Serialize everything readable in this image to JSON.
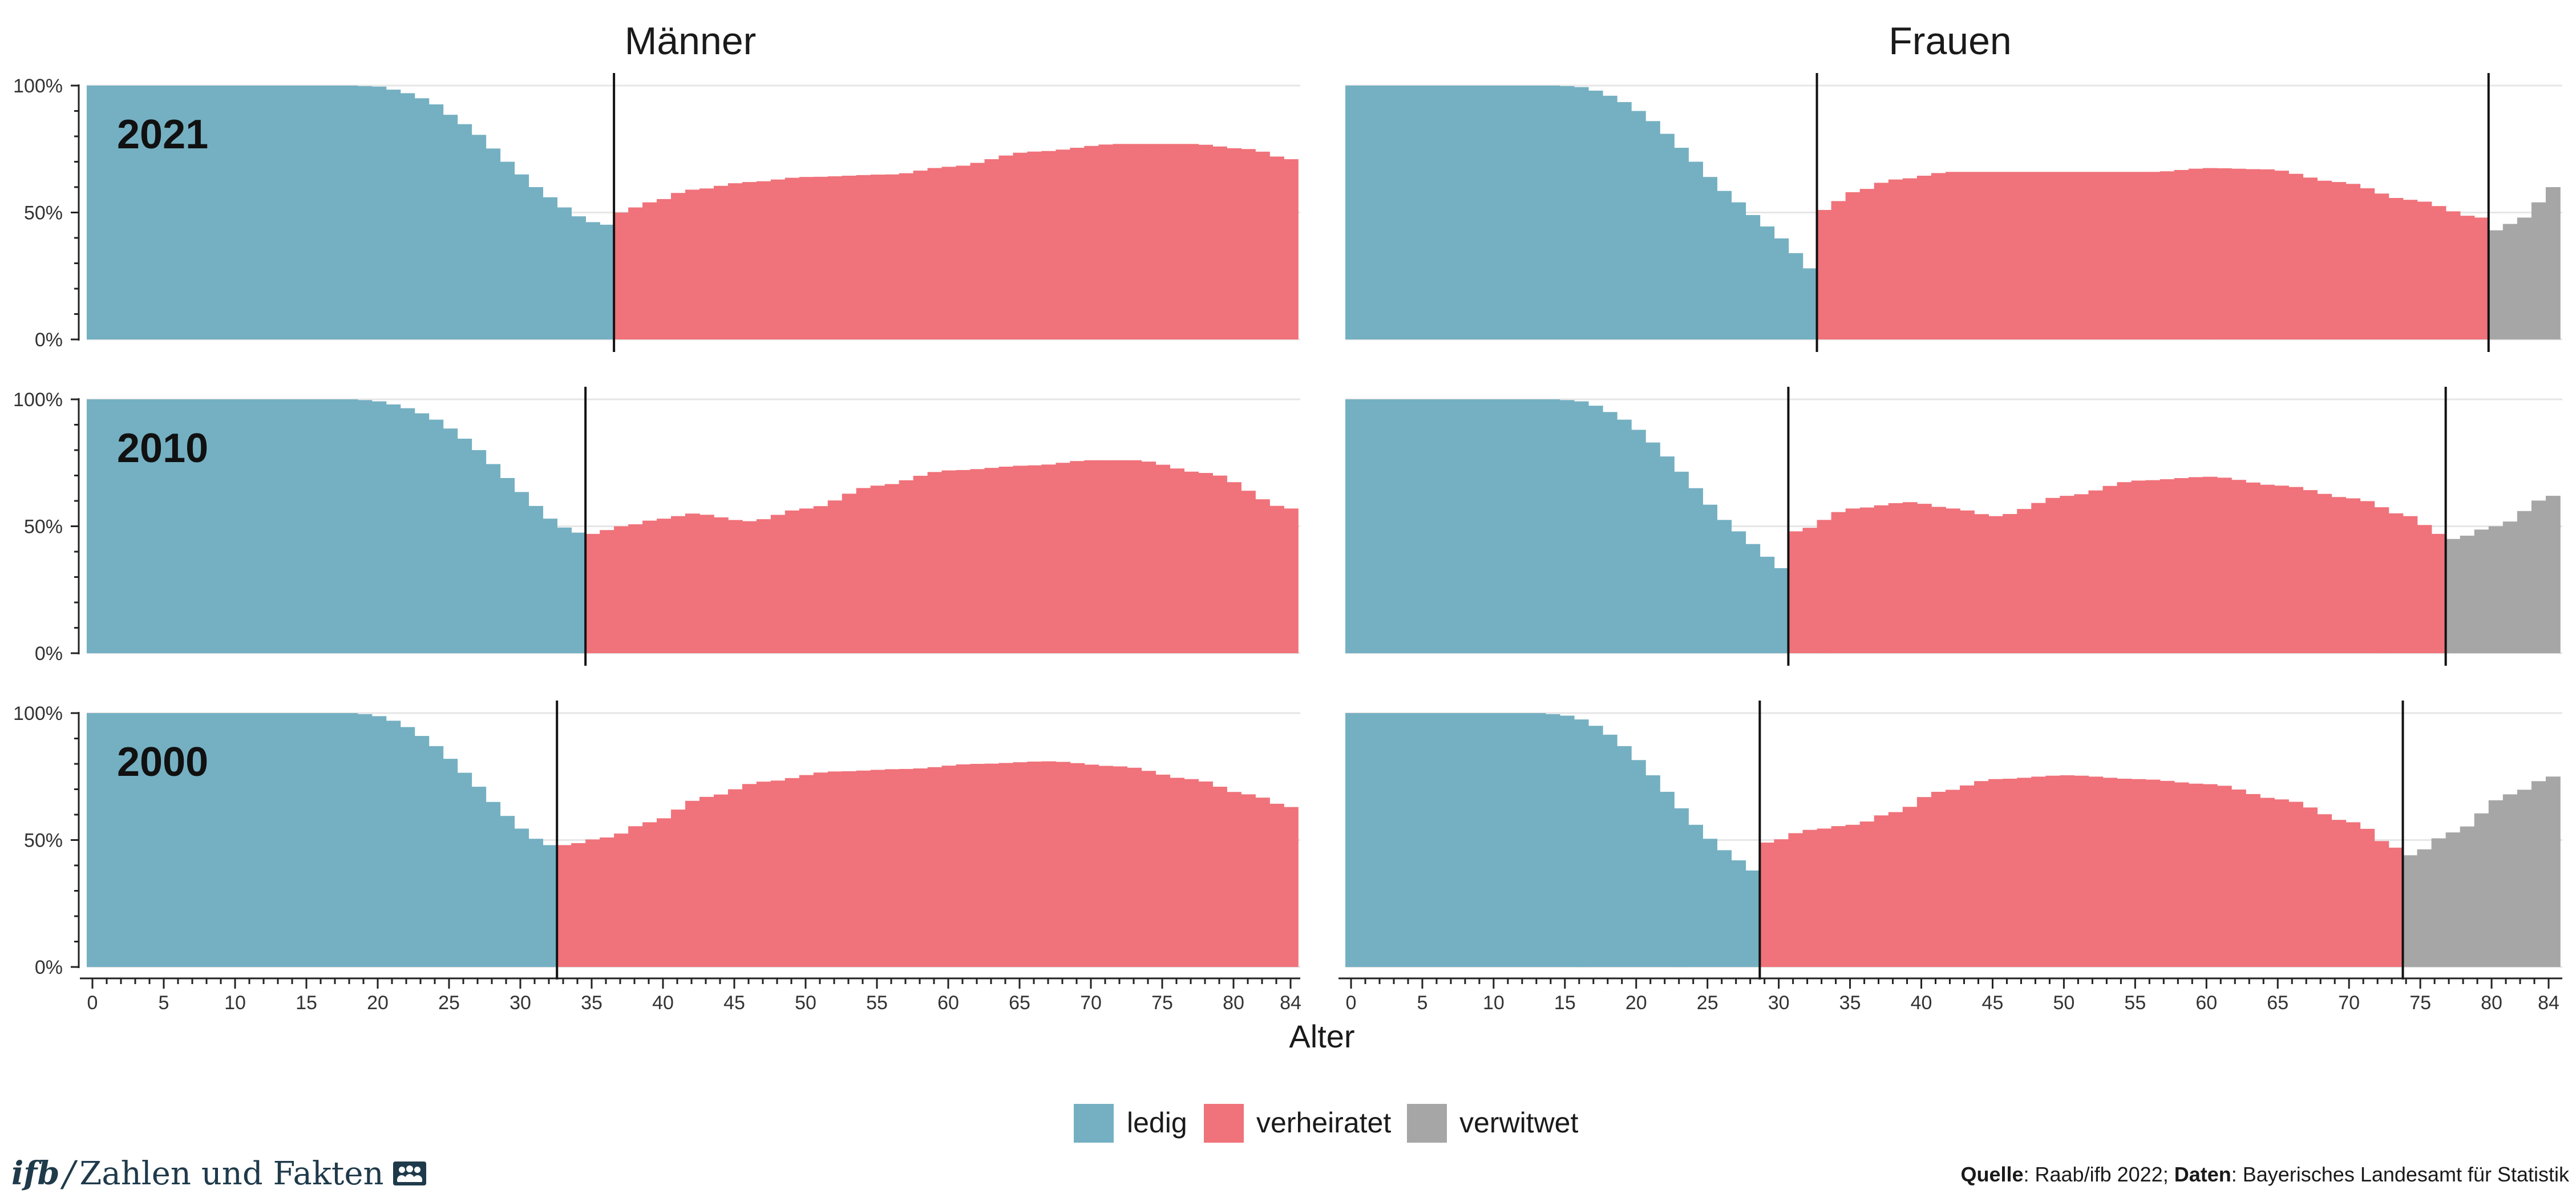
{
  "colors": {
    "ledig": "#74b0c2",
    "verheiratet": "#f0727a",
    "verwitwet": "#a6a6a6"
  },
  "chart_data": {
    "type": "bar",
    "xlabel": "Alter",
    "x_ticks": [
      "0",
      "5",
      "10",
      "15",
      "20",
      "25",
      "30",
      "35",
      "40",
      "45",
      "50",
      "55",
      "60",
      "65",
      "70",
      "75",
      "80",
      "84"
    ],
    "y_ticks": [
      "0%",
      "50%",
      "100%"
    ],
    "ylim": [
      0,
      100
    ],
    "columns": [
      "Männer",
      "Frauen"
    ],
    "legend": [
      "ledig",
      "verheiratet",
      "verwitwet"
    ],
    "panels": [
      {
        "year": "2021",
        "sex": "Männer",
        "switch_married": 37,
        "switch_widowed": null,
        "ledig": [
          100,
          100,
          100,
          100,
          100,
          100,
          100,
          100,
          100,
          100,
          100,
          100,
          100,
          100,
          100,
          100,
          100,
          100,
          100.0,
          99.8,
          99.6,
          98.4,
          97.0,
          95.0,
          92.6,
          88.5,
          84.8,
          80.6,
          75.2,
          70.0,
          65.0,
          60.0,
          56.0,
          52.0,
          48.5,
          46.2,
          45.2
        ],
        "verheiratet_anchors": [
          [
            37,
            50
          ],
          [
            39,
            54
          ],
          [
            42,
            59
          ],
          [
            46,
            62
          ],
          [
            50,
            64
          ],
          [
            56,
            65
          ],
          [
            60,
            68
          ],
          [
            66,
            74
          ],
          [
            72,
            77
          ],
          [
            77,
            77
          ],
          [
            81,
            75
          ],
          [
            84,
            71
          ]
        ],
        "verwitwet_anchors": null
      },
      {
        "year": "2021",
        "sex": "Frauen",
        "switch_married": 33,
        "switch_widowed": 80,
        "ledig": [
          100,
          100,
          100,
          100,
          100,
          100,
          100,
          100,
          100,
          100,
          100,
          100,
          100,
          100,
          100.0,
          99.8,
          99.4,
          98.0,
          96.0,
          93.5,
          90.0,
          86.0,
          81.0,
          75.5,
          70.0,
          64.0,
          58.5,
          54.0,
          49.0,
          44.5,
          39.8,
          34.0,
          28.0
        ],
        "verheiratet_anchors": [
          [
            33,
            51
          ],
          [
            35,
            58
          ],
          [
            38,
            63
          ],
          [
            42,
            66
          ],
          [
            50,
            66
          ],
          [
            56,
            66
          ],
          [
            60,
            67.5
          ],
          [
            64,
            67
          ],
          [
            69,
            62
          ],
          [
            74,
            55
          ],
          [
            79,
            48
          ]
        ],
        "verwitwet_anchors": [
          [
            80,
            43
          ],
          [
            82,
            48
          ],
          [
            84,
            60
          ]
        ]
      },
      {
        "year": "2010",
        "sex": "Männer",
        "switch_married": 35,
        "switch_widowed": null,
        "ledig": [
          100,
          100,
          100,
          100,
          100,
          100,
          100,
          100,
          100,
          100,
          100,
          100,
          100,
          100,
          100,
          100,
          100,
          100,
          100.0,
          99.7,
          99.2,
          98.0,
          96.5,
          94.5,
          92.0,
          88.5,
          84.5,
          80.0,
          74.5,
          69.0,
          63.5,
          58.0,
          53.0,
          49.5,
          47.5
        ],
        "verheiratet_anchors": [
          [
            35,
            47
          ],
          [
            37,
            50
          ],
          [
            40,
            53
          ],
          [
            42,
            55
          ],
          [
            46,
            52
          ],
          [
            50,
            57
          ],
          [
            55,
            66
          ],
          [
            60,
            72
          ],
          [
            66,
            74
          ],
          [
            70,
            76
          ],
          [
            73,
            76
          ],
          [
            78,
            71
          ],
          [
            84,
            57
          ]
        ],
        "verwitwet_anchors": null
      },
      {
        "year": "2010",
        "sex": "Frauen",
        "switch_married": 31,
        "switch_widowed": 77,
        "ledig": [
          100,
          100,
          100,
          100,
          100,
          100,
          100,
          100,
          100,
          100,
          100,
          100,
          100,
          100,
          100.0,
          99.7,
          99.2,
          97.5,
          95.0,
          92.0,
          88.0,
          83.0,
          77.5,
          71.5,
          65.0,
          58.5,
          52.5,
          48.0,
          43.0,
          38.0,
          33.5
        ],
        "verheiratet_anchors": [
          [
            31,
            48
          ],
          [
            35,
            57
          ],
          [
            39,
            59.5
          ],
          [
            42,
            57
          ],
          [
            45,
            54
          ],
          [
            50,
            62
          ],
          [
            55,
            68
          ],
          [
            60,
            69.5
          ],
          [
            65,
            66
          ],
          [
            70,
            61
          ],
          [
            74,
            54
          ],
          [
            76,
            47
          ]
        ],
        "verwitwet_anchors": [
          [
            77,
            45
          ],
          [
            80,
            50
          ],
          [
            84,
            62
          ]
        ]
      },
      {
        "year": "2000",
        "sex": "Männer",
        "switch_married": 33,
        "switch_widowed": null,
        "ledig": [
          100,
          100,
          100,
          100,
          100,
          100,
          100,
          100,
          100,
          100,
          100,
          100,
          100,
          100,
          100,
          100,
          100,
          100,
          100.0,
          99.6,
          98.8,
          97.0,
          94.5,
          91.0,
          87.0,
          82.0,
          76.5,
          71.0,
          65.0,
          59.5,
          54.5,
          50.5,
          48.0
        ],
        "verheiratet_anchors": [
          [
            33,
            48
          ],
          [
            36,
            51
          ],
          [
            39,
            57
          ],
          [
            43,
            67
          ],
          [
            47,
            73
          ],
          [
            52,
            77
          ],
          [
            57,
            78
          ],
          [
            62,
            80
          ],
          [
            67,
            81
          ],
          [
            72,
            79
          ],
          [
            77,
            74
          ],
          [
            81,
            68
          ],
          [
            84,
            63
          ]
        ],
        "verwitwet_anchors": null
      },
      {
        "year": "2000",
        "sex": "Frauen",
        "switch_married": 29,
        "switch_widowed": 74,
        "ledig": [
          100,
          100,
          100,
          100,
          100,
          100,
          100,
          100,
          100,
          100,
          100,
          100,
          100,
          100,
          99.6,
          99.0,
          97.5,
          95.0,
          91.5,
          87.0,
          81.5,
          75.5,
          69.0,
          62.5,
          56.0,
          50.5,
          46.0,
          42.0,
          38.0
        ],
        "verheiratet_anchors": [
          [
            29,
            49
          ],
          [
            32,
            54
          ],
          [
            35,
            56
          ],
          [
            38,
            61
          ],
          [
            41,
            69
          ],
          [
            45,
            74
          ],
          [
            50,
            75.5
          ],
          [
            55,
            74
          ],
          [
            60,
            72
          ],
          [
            65,
            66
          ],
          [
            70,
            57
          ],
          [
            73,
            47
          ]
        ],
        "verwitwet_anchors": [
          [
            74,
            44
          ],
          [
            77,
            53
          ],
          [
            81,
            68
          ],
          [
            84,
            75
          ]
        ]
      }
    ],
    "source_label": "Quelle",
    "source_value": ": Raab/ifb 2022; ",
    "data_label": "Daten",
    "data_value": ": Bayerisches Landesamt für Statistik"
  },
  "brand": {
    "ifb": "ifb",
    "text": "Zahlen und Fakten"
  }
}
